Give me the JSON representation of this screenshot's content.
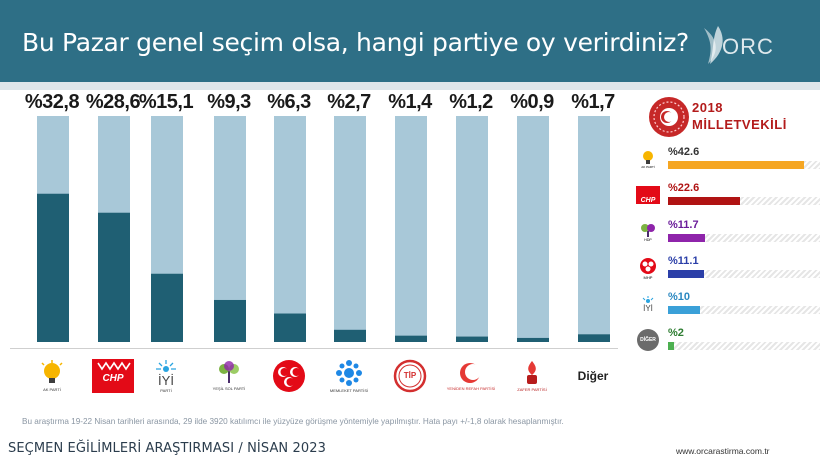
{
  "header": {
    "title": "Bu Pazar genel seçim olsa, hangi partiye oy verirdiniz?",
    "logo_text": "ORC"
  },
  "chart_data": {
    "type": "bar",
    "categories": [
      "AK PARTİ",
      "CHP",
      "İYİ PARTİ",
      "YEŞİL SOL PARTİ",
      "MHP",
      "MEMLEKET PARTİSİ",
      "TİP",
      "YENİDEN REFAH PARTİSİ",
      "ZAFER PARTİSİ",
      "Diğer"
    ],
    "values": [
      32.8,
      28.6,
      15.1,
      9.3,
      6.3,
      2.7,
      1.4,
      1.2,
      0.9,
      1.7
    ],
    "value_labels": [
      "%32,8",
      "%28,6",
      "%15,1",
      "%9,3",
      "%6,3",
      "%2,7",
      "%1,4",
      "%1,2",
      "%0,9",
      "%1,7"
    ],
    "ylim": [
      0,
      50
    ],
    "colors": {
      "fill": "#1f5f73",
      "track": "#a8c8d8"
    }
  },
  "parties": {
    "akp": "AK PARTİ",
    "chp": "CHP",
    "iyi": "İYİ",
    "iyi_sub": "PARTİ",
    "ysp": "YEŞİL SOL PARTİ",
    "memleket": "MEMLEKET PARTİSİ",
    "tip": "TİP",
    "refah": "YENİDEN REFAH PARTİSİ",
    "zafer": "ZAFER PARTİSİ",
    "diger": "Diğer"
  },
  "side_panel": {
    "year": "2018",
    "title": "MİLLETVEKİLİ",
    "rows": [
      {
        "label": "%42.6",
        "value": 42.6,
        "color": "#f5a623",
        "pct_color": "#333333",
        "logo": "AK PARTİ"
      },
      {
        "label": "%22.6",
        "value": 22.6,
        "color": "#b01313",
        "pct_color": "#b01313",
        "logo": "CHP"
      },
      {
        "label": "%11.7",
        "value": 11.7,
        "color": "#8e24aa",
        "pct_color": "#6a1b9a",
        "logo": "HDP"
      },
      {
        "label": "%11.1",
        "value": 11.1,
        "color": "#2b3fa8",
        "pct_color": "#2b3fa8",
        "logo": "MHP"
      },
      {
        "label": "%10",
        "value": 10,
        "color": "#3aa0d8",
        "pct_color": "#2b88c0",
        "logo": "İYİ"
      },
      {
        "label": "%2",
        "value": 2,
        "color": "#4caf50",
        "pct_color": "#2e7d32",
        "logo": "DİĞER"
      }
    ]
  },
  "footer": {
    "note": "Bu araştırma 19-22 Nisan tarihleri arasında, 29 ilde 3920 katılımcı ile yüzyüze görüşme yöntemiyle yapılmıştır. Hata payı +/-1,8 olarak hesaplanmıştır.",
    "left": "SEÇMEN EĞİLİMLERİ ARAŞTIRMASI / NİSAN 2023",
    "right": "www.orcarastirma.com.tr"
  }
}
